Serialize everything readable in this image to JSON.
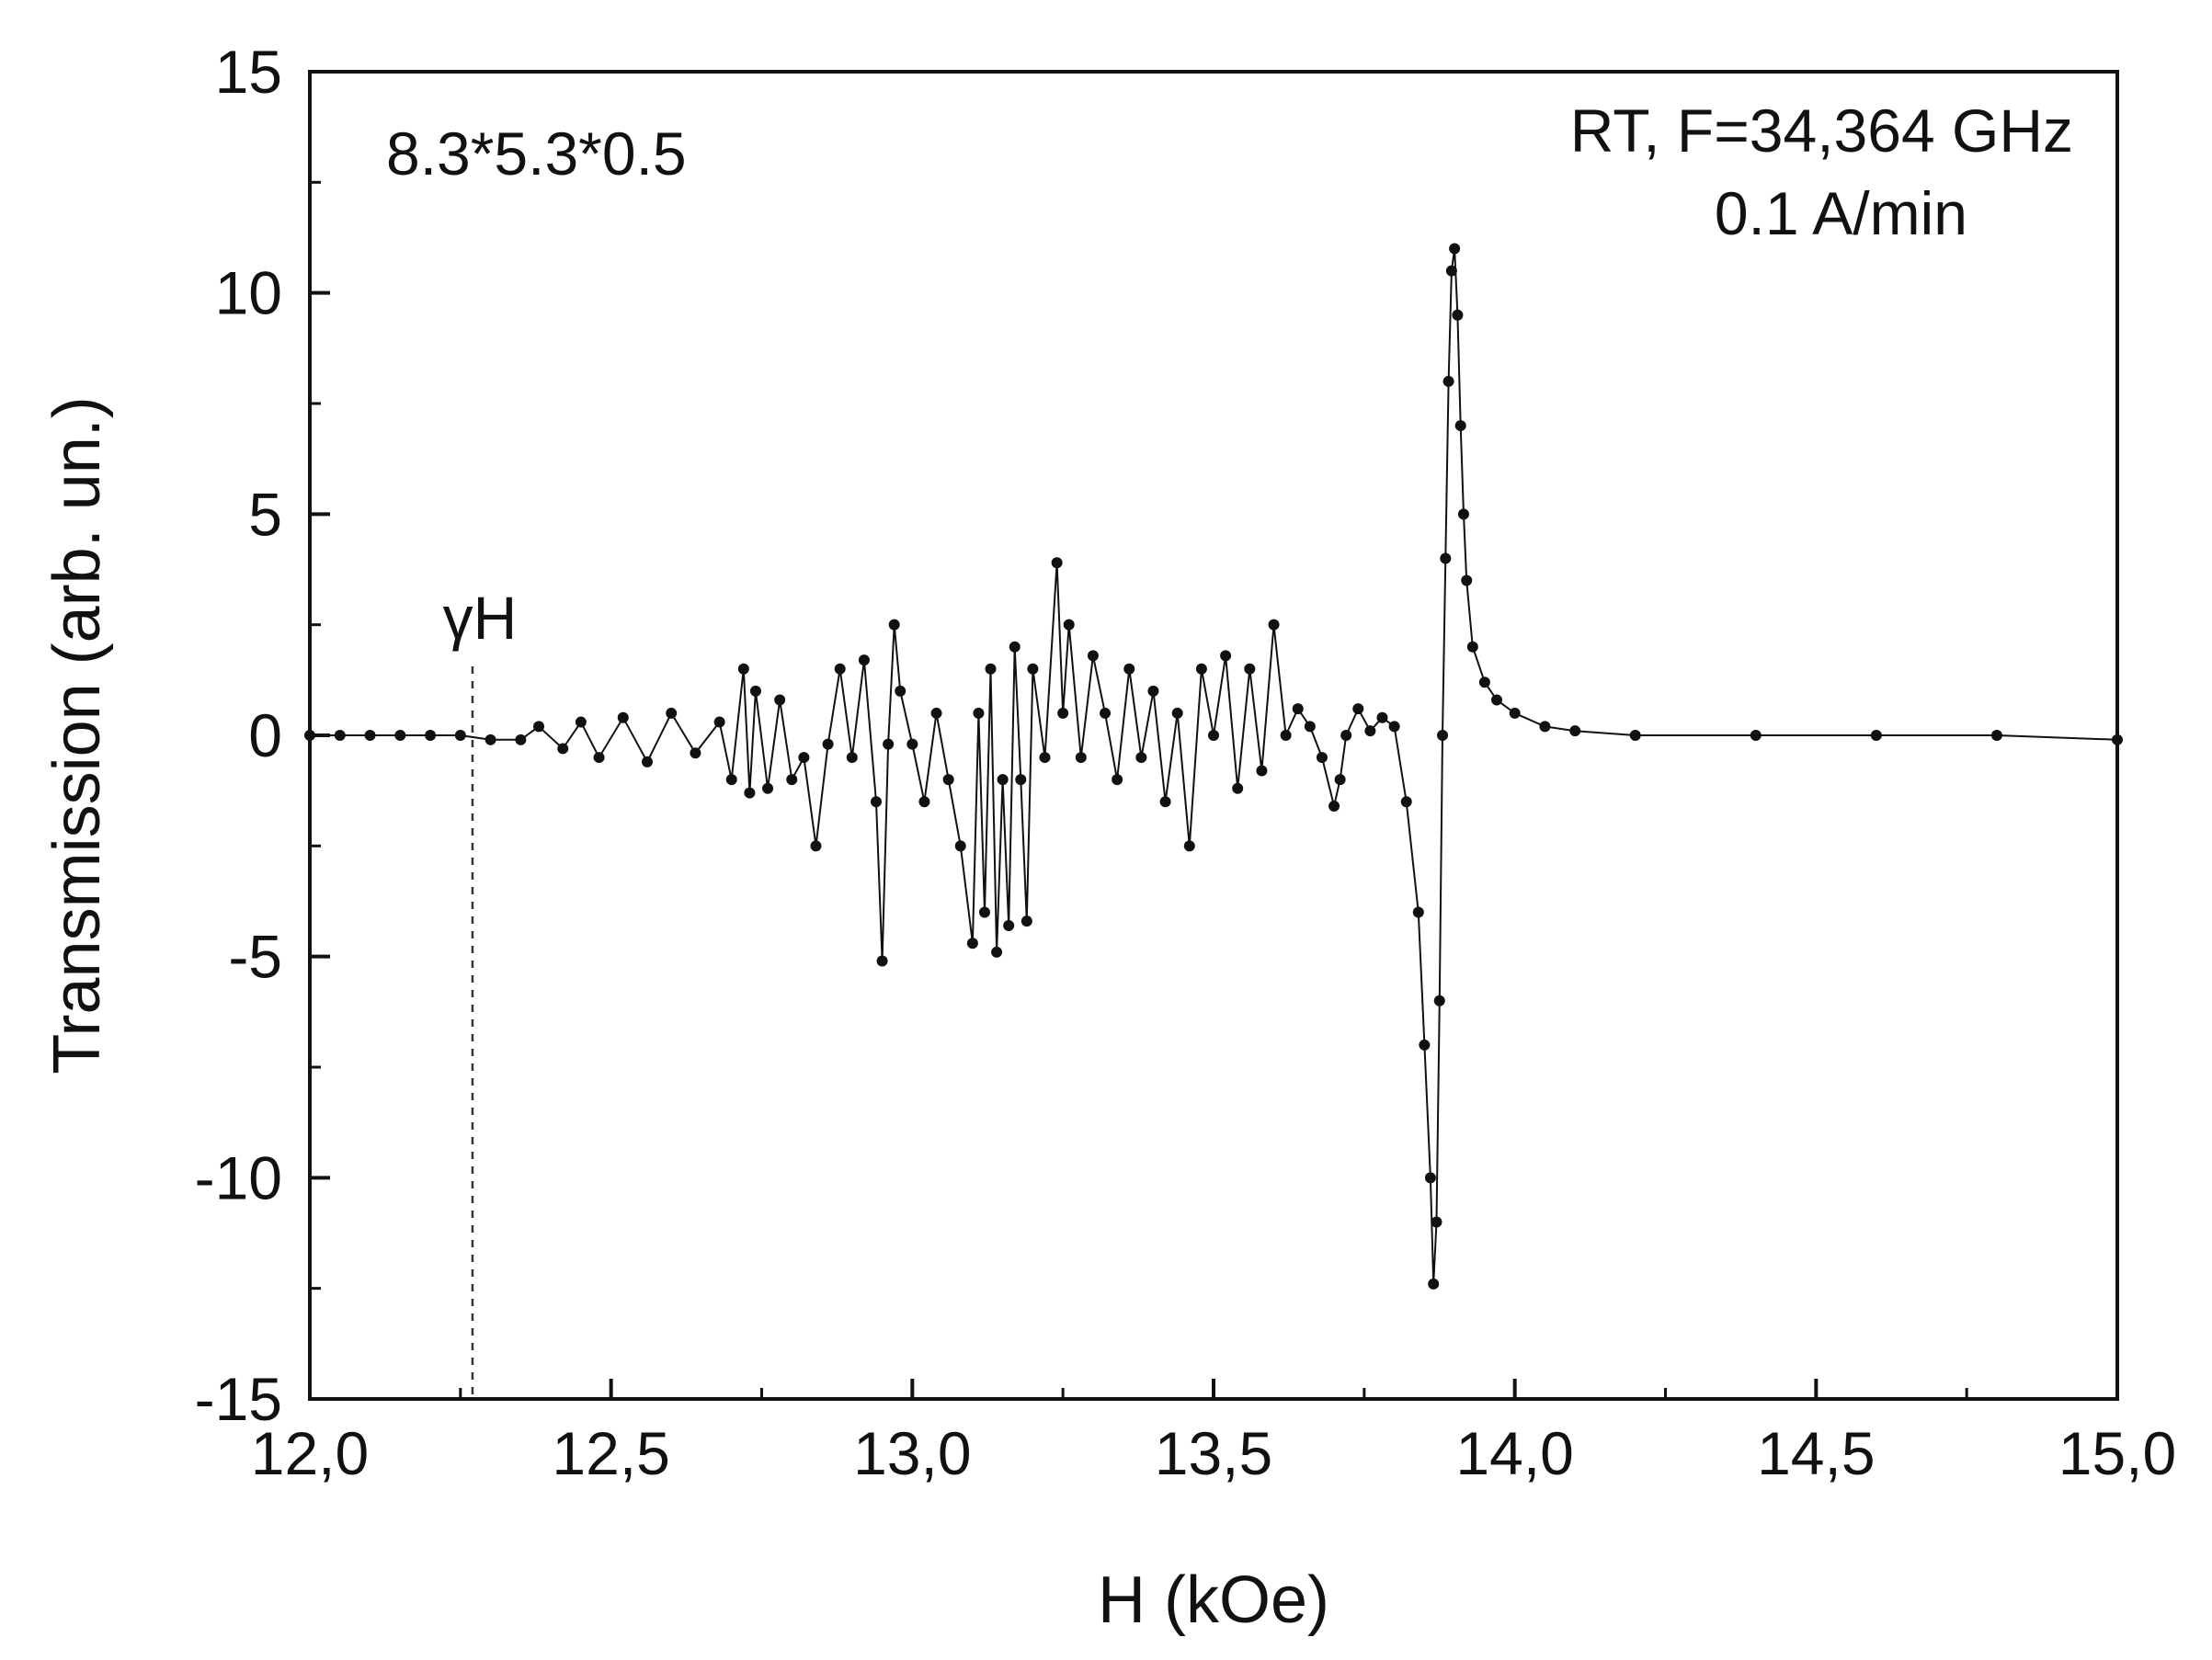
{
  "chart_data": {
    "type": "scatter",
    "title": "",
    "xlabel": "H (kOe)",
    "ylabel": "Transmission (arb. un.)",
    "xlim": [
      12.0,
      15.0
    ],
    "ylim": [
      -15,
      15
    ],
    "x_ticks": [
      12.0,
      12.5,
      13.0,
      13.5,
      14.0,
      14.5,
      15.0
    ],
    "x_tick_labels": [
      "12,0",
      "12,5",
      "13,0",
      "13,5",
      "14,0",
      "14,5",
      "15,0"
    ],
    "y_ticks": [
      -15,
      -10,
      -5,
      0,
      5,
      10,
      15
    ],
    "y_tick_labels": [
      "-15",
      "-10",
      "-5",
      "0",
      "5",
      "10",
      "15"
    ],
    "grid": false,
    "annotations": {
      "sample_size": "8.3*5.3*0.5",
      "conditions_line1": "RT, F=34,364 GHz",
      "conditions_line2": "0.1 A/min",
      "gamma_label": "γH",
      "gamma_marker_x": 12.27
    },
    "series": [
      {
        "marker": "dot-line",
        "color": "#111111",
        "x": [
          12.0,
          12.05,
          12.1,
          12.15,
          12.2,
          12.25,
          12.3,
          12.35,
          12.38,
          12.42,
          12.45,
          12.48,
          12.52,
          12.56,
          12.6,
          12.64,
          12.68,
          12.7,
          12.72,
          12.73,
          12.74,
          12.76,
          12.78,
          12.8,
          12.82,
          12.84,
          12.86,
          12.88,
          12.9,
          12.92,
          12.94,
          12.95,
          12.96,
          12.97,
          12.98,
          13.0,
          13.02,
          13.04,
          13.06,
          13.08,
          13.1,
          13.11,
          13.12,
          13.13,
          13.14,
          13.15,
          13.16,
          13.17,
          13.18,
          13.19,
          13.2,
          13.22,
          13.24,
          13.25,
          13.26,
          13.28,
          13.3,
          13.32,
          13.34,
          13.36,
          13.38,
          13.4,
          13.42,
          13.44,
          13.46,
          13.48,
          13.5,
          13.52,
          13.54,
          13.56,
          13.58,
          13.6,
          13.62,
          13.64,
          13.66,
          13.68,
          13.7,
          13.71,
          13.72,
          13.74,
          13.76,
          13.78,
          13.8,
          13.82,
          13.84,
          13.85,
          13.86,
          13.865,
          13.87,
          13.875,
          13.88,
          13.885,
          13.89,
          13.895,
          13.9,
          13.905,
          13.91,
          13.915,
          13.92,
          13.93,
          13.95,
          13.97,
          14.0,
          14.05,
          14.1,
          14.2,
          14.4,
          14.6,
          14.8,
          15.0
        ],
        "y": [
          0.0,
          0.0,
          0.0,
          0.0,
          0.0,
          0.0,
          -0.1,
          -0.1,
          0.2,
          -0.3,
          0.3,
          -0.5,
          0.4,
          -0.6,
          0.5,
          -0.4,
          0.3,
          -1.0,
          1.5,
          -1.3,
          1.0,
          -1.2,
          0.8,
          -1.0,
          -0.5,
          -2.5,
          -0.2,
          1.5,
          -0.5,
          1.7,
          -1.5,
          -5.1,
          -0.2,
          2.5,
          1.0,
          -0.2,
          -1.5,
          0.5,
          -1.0,
          -2.5,
          -4.7,
          0.5,
          -4.0,
          1.5,
          -4.9,
          -1.0,
          -4.3,
          2.0,
          -1.0,
          -4.2,
          1.5,
          -0.5,
          3.9,
          0.5,
          2.5,
          -0.5,
          1.8,
          0.5,
          -1.0,
          1.5,
          -0.5,
          1.0,
          -1.5,
          0.5,
          -2.5,
          1.5,
          0.0,
          1.8,
          -1.2,
          1.5,
          -0.8,
          2.5,
          0.0,
          0.6,
          0.2,
          -0.5,
          -1.6,
          -1.0,
          0.0,
          0.6,
          0.1,
          0.4,
          0.2,
          -1.5,
          -4.0,
          -7.0,
          -10.0,
          -12.4,
          -11.0,
          -6.0,
          0.0,
          4.0,
          8.0,
          10.5,
          11.0,
          9.5,
          7.0,
          5.0,
          3.5,
          2.0,
          1.2,
          0.8,
          0.5,
          0.2,
          0.1,
          0.0,
          0.0,
          0.0,
          0.0,
          -0.1
        ]
      }
    ]
  }
}
